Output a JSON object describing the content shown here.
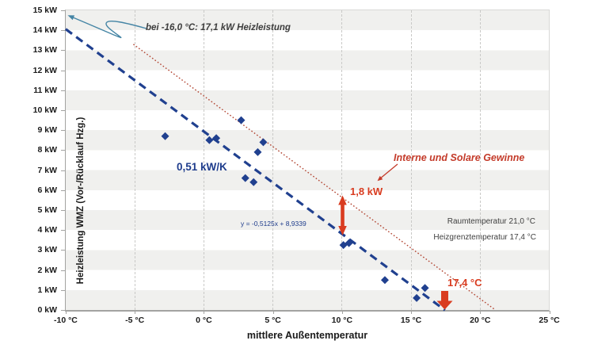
{
  "colors": {
    "navy": "#20408f",
    "navy_text": "#1e3c8c",
    "trend_red": "#b24431",
    "accent_red": "#d93c20",
    "gains_red": "#c43b2a",
    "callout_blue": "#4585a5",
    "band_gray": "#f0f0ee",
    "text_dark": "#1a1a1a",
    "text_gray": "#3f3f3f"
  },
  "axes": {
    "x_title": "mittlere Außentemperatur",
    "y_title": "Heizleistung WMZ (Vor-/Rücklauf Hzg.)",
    "x_ticks": [
      {
        "value": -10,
        "label": "-10 °C"
      },
      {
        "value": -5,
        "label": "-5 °C"
      },
      {
        "value": 0,
        "label": "0 °C"
      },
      {
        "value": 5,
        "label": "5 °C"
      },
      {
        "value": 10,
        "label": "10 °C"
      },
      {
        "value": 15,
        "label": "15 °C"
      },
      {
        "value": 20,
        "label": "20 °C"
      },
      {
        "value": 25,
        "label": "25 °C"
      }
    ],
    "y_ticks": [
      {
        "value": 0,
        "label": "0 kW"
      },
      {
        "value": 1,
        "label": "1 kW"
      },
      {
        "value": 2,
        "label": "2 kW"
      },
      {
        "value": 3,
        "label": "3 kW"
      },
      {
        "value": 4,
        "label": "4 kW"
      },
      {
        "value": 5,
        "label": "5 kW"
      },
      {
        "value": 6,
        "label": "6 kW"
      },
      {
        "value": 7,
        "label": "7 kW"
      },
      {
        "value": 8,
        "label": "8 kW"
      },
      {
        "value": 9,
        "label": "9 kW"
      },
      {
        "value": 10,
        "label": "10 kW"
      },
      {
        "value": 11,
        "label": "11 kW"
      },
      {
        "value": 12,
        "label": "12 kW"
      },
      {
        "value": 13,
        "label": "13 kW"
      },
      {
        "value": 14,
        "label": "14 kW"
      },
      {
        "value": 15,
        "label": "15 kW"
      }
    ]
  },
  "annotations": {
    "extrapolation": "bei -16,0 °C: 17,1 kW Heizleistung",
    "slope": "0,51 kW/K",
    "equation": "y = -0,5125x + 8,9339",
    "gains": "Interne und Solare Gewinne",
    "gap": "1,8 kW",
    "room_temp": "Raumtemperatur 21,0 °C",
    "heating_limit": "Heizgrenztemperatur 17,4 °C",
    "limit_temp": "17,4 °C"
  },
  "chart_data": {
    "type": "scatter",
    "title": "",
    "xlabel": "mittlere Außentemperatur",
    "ylabel": "Heizleistung WMZ (Vor-/Rücklauf Hzg.)",
    "xlim": [
      -10,
      25
    ],
    "ylim": [
      0,
      15
    ],
    "x_tick_step_c": 5,
    "y_tick_step_kw": 1,
    "grid": "vertical-dashed, horizontal alternating bands",
    "legend": "none",
    "points_unit": [
      "°C",
      "kW"
    ],
    "points": [
      [
        -2.8,
        8.7
      ],
      [
        0.4,
        8.5
      ],
      [
        0.9,
        8.6
      ],
      [
        2.7,
        9.5
      ],
      [
        3.0,
        6.6
      ],
      [
        3.6,
        6.4
      ],
      [
        3.9,
        7.9
      ],
      [
        4.3,
        8.4
      ],
      [
        10.1,
        3.25
      ],
      [
        10.5,
        3.35
      ],
      [
        13.1,
        1.5
      ],
      [
        15.4,
        0.6
      ],
      [
        16.0,
        1.1
      ]
    ],
    "trendline": {
      "label": "0,51 kW/K",
      "equation": "y = -0,5125x + 8,9339",
      "slope": -0.5125,
      "intercept": 8.9339,
      "x_range": [
        -10,
        17.45
      ],
      "style": "dashed",
      "extrapolation_note": "bei -16,0 °C: 17,1 kW Heizleistung"
    },
    "gains_line": {
      "label": "Interne und Solare Gewinne",
      "endpoints": [
        [
          -5.1,
          13.3
        ],
        [
          21.1,
          0
        ]
      ],
      "style": "dotted",
      "gap_to_trendline_kw": 1.8,
      "zero_crossing_c": 21.1
    },
    "markers_notes": {
      "gap_arrow_at_c": 10,
      "gap_value": "1,8 kW",
      "heating_limit_c": 17.4,
      "room_temperature_c": 21.0
    }
  }
}
